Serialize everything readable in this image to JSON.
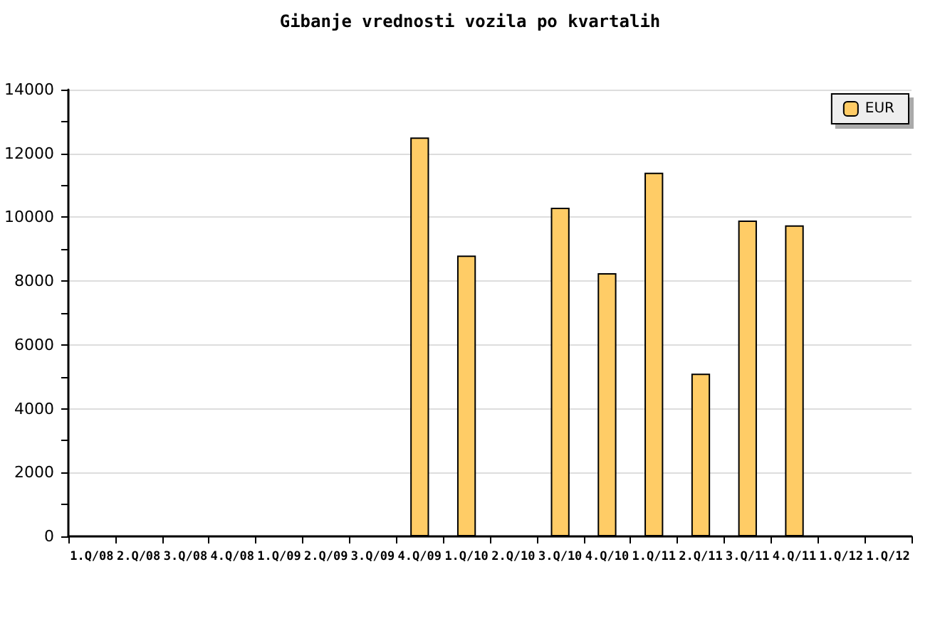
{
  "chart_data": {
    "type": "bar",
    "title": "Gibanje vrednosti vozila po kvartalih",
    "categories": [
      "1.Q/08",
      "2.Q/08",
      "3.Q/08",
      "4.Q/08",
      "1.Q/09",
      "2.Q/09",
      "3.Q/09",
      "4.Q/09",
      "1.Q/10",
      "2.Q/10",
      "3.Q/10",
      "4.Q/10",
      "1.Q/11",
      "2.Q/11",
      "3.Q/11",
      "4.Q/11",
      "1.Q/12",
      "1.Q/12"
    ],
    "series": [
      {
        "name": "EUR",
        "color": "#ffcc66",
        "values": [
          null,
          null,
          null,
          null,
          null,
          null,
          null,
          12500,
          8800,
          null,
          10300,
          8250,
          11400,
          5100,
          9900,
          9750,
          null,
          null
        ]
      }
    ],
    "ylim": [
      0,
      14000
    ],
    "yticks": [
      0,
      2000,
      4000,
      6000,
      8000,
      10000,
      12000,
      14000
    ],
    "grid": "y",
    "legend": "top right"
  }
}
